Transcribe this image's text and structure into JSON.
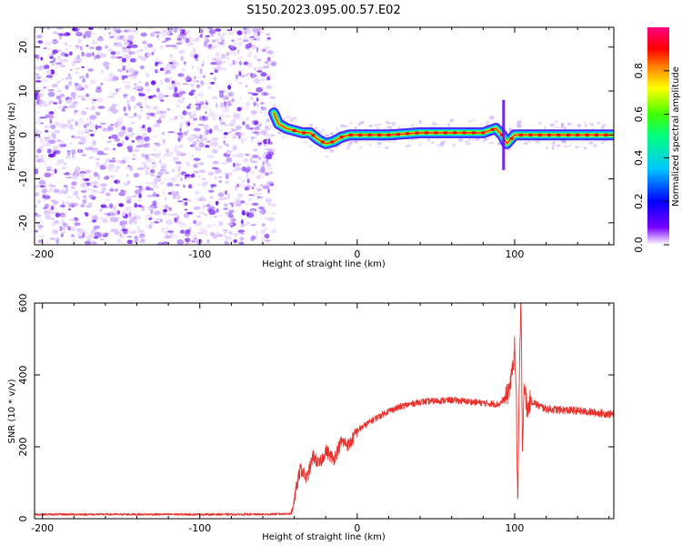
{
  "figure": {
    "title": "S150.2023.095.00.57.E02"
  },
  "chart_data": [
    {
      "type": "heatmap",
      "title": "S150.2023.095.00.57.E02",
      "xlabel": "Height of straight line (km)",
      "ylabel": "Frequency (Hz)",
      "xlim": [
        -205,
        163
      ],
      "ylim": [
        -25,
        24.5
      ],
      "xticks": [
        -200,
        -100,
        0,
        100
      ],
      "yticks": [
        -20,
        -10,
        0,
        10,
        20
      ],
      "noise_region": {
        "x_range": [
          -205,
          -53
        ],
        "y_range": [
          -25,
          24.5
        ]
      },
      "signal_ridge": {
        "x": [
          -53,
          -50,
          -45,
          -40,
          -35,
          -30,
          -25,
          -20,
          -15,
          -10,
          -5,
          0,
          20,
          40,
          60,
          80,
          88,
          92,
          95,
          100,
          120,
          140,
          163
        ],
        "y": [
          5,
          2.5,
          1.5,
          1,
          0.5,
          0.5,
          -1,
          -2,
          -1.5,
          -0.5,
          0,
          0,
          0,
          0.5,
          0.5,
          0.5,
          1.5,
          0,
          -2,
          0,
          0,
          0,
          0
        ]
      },
      "colorbar": {
        "label": "Normalized spectral amplitude",
        "range": [
          0,
          1
        ],
        "ticks": [
          "0.0",
          "0.2",
          "0.4",
          "0.6",
          "0.8"
        ],
        "colors": [
          "#ffffff",
          "#7a00ff",
          "#0000ff",
          "#00c8ff",
          "#00ff80",
          "#40ff00",
          "#ffff00",
          "#ff7f00",
          "#ff0000",
          "#ff0080"
        ]
      }
    },
    {
      "type": "line",
      "xlabel": "Height of straight line (km)",
      "ylabel": "SNR (10 * v/v)",
      "xlim": [
        -205,
        163
      ],
      "ylim": [
        0,
        600
      ],
      "xticks": [
        -200,
        -100,
        0,
        100
      ],
      "yticks": [
        0,
        200,
        400,
        600
      ],
      "color": "#e8322e",
      "series": [
        {
          "x": [
            -205,
            -150,
            -100,
            -60,
            -42,
            -40,
            -36,
            -32,
            -28,
            -24,
            -20,
            -15,
            -10,
            -5,
            0,
            10,
            20,
            30,
            40,
            60,
            80,
            90,
            95,
            98,
            100,
            101,
            102,
            103,
            104,
            105,
            106,
            108,
            110,
            115,
            120,
            140,
            163
          ],
          "y": [
            12,
            12,
            12,
            12,
            14,
            55,
            140,
            110,
            175,
            150,
            190,
            165,
            215,
            205,
            245,
            275,
            300,
            315,
            325,
            330,
            322,
            318,
            340,
            390,
            480,
            350,
            30,
            400,
            600,
            200,
            380,
            300,
            330,
            315,
            305,
            300,
            290
          ]
        }
      ]
    }
  ]
}
